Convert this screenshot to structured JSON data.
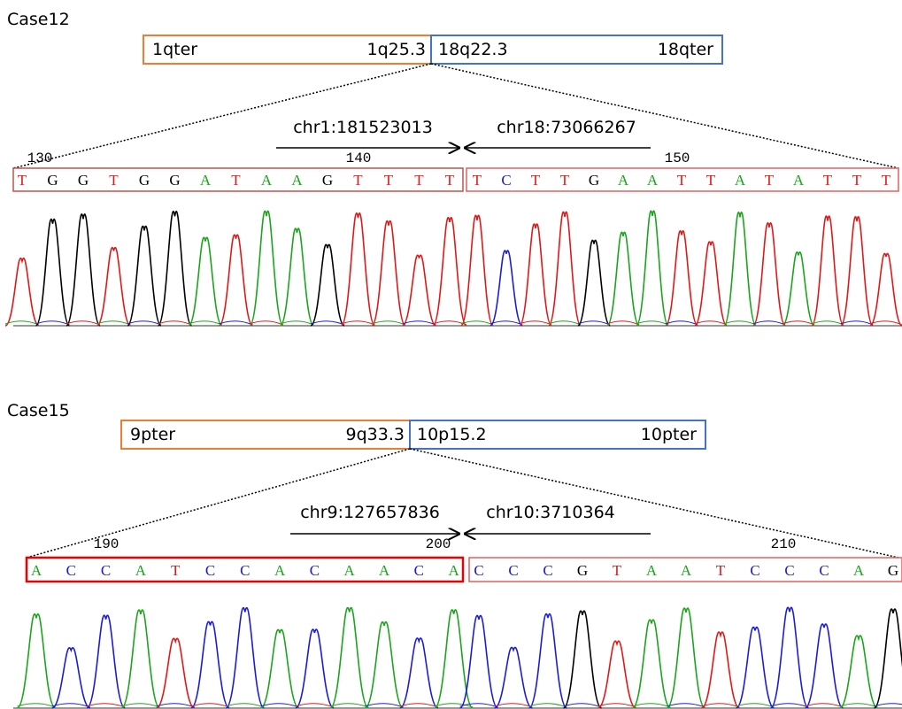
{
  "panels": [
    {
      "case": "Case12",
      "left_box": {
        "start": "1qter",
        "end": "1q25.3"
      },
      "right_box": {
        "start": "18q22.3",
        "end": "18qter"
      },
      "left_coord": "chr1:181523013",
      "right_coord": "chr18:73066267",
      "positions": [
        130,
        140,
        150
      ],
      "left_bases": [
        "T",
        "G",
        "G",
        "T",
        "G",
        "G",
        "A",
        "T",
        "A",
        "A",
        "G",
        "T",
        "T",
        "T",
        "T"
      ],
      "right_bases": [
        "T",
        "C",
        "T",
        "T",
        "G",
        "A",
        "A",
        "T",
        "T",
        "A",
        "T",
        "A",
        "T",
        "T",
        "T"
      ]
    },
    {
      "case": "Case15",
      "left_box": {
        "start": "9pter",
        "end": "9q33.3"
      },
      "right_box": {
        "start": "10p15.2",
        "end": "10pter"
      },
      "left_coord": "chr9:127657836",
      "right_coord": "chr10:3710364",
      "positions": [
        190,
        200,
        210
      ],
      "left_bases": [
        "A",
        "C",
        "C",
        "A",
        "T",
        "C",
        "C",
        "A",
        "C",
        "A",
        "A",
        "C",
        "A"
      ],
      "right_bases": [
        "C",
        "C",
        "C",
        "G",
        "T",
        "A",
        "A",
        "T",
        "C",
        "C",
        "C",
        "A",
        "G"
      ]
    }
  ]
}
